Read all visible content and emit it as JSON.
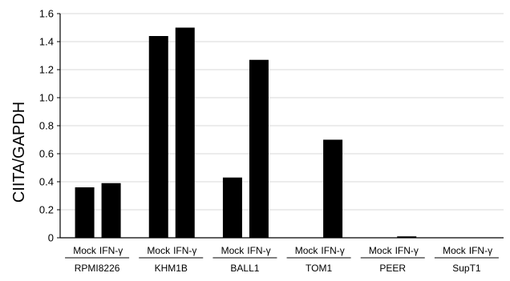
{
  "chart_data": {
    "type": "bar",
    "ylabel": "CIITA/GAPDH",
    "ylim": [
      0,
      1.6
    ],
    "yticks": [
      "0",
      "0.2",
      "0.4",
      "0.6",
      "0.8",
      "1.0",
      "1.2",
      "1.4",
      "1.6"
    ],
    "grid": true,
    "groups": [
      "RPMI8226",
      "KHM1B",
      "BALL1",
      "TOM1",
      "PEER",
      "SupT1"
    ],
    "conditions": [
      "Mock",
      "IFN-γ"
    ],
    "series": [
      {
        "name": "Mock",
        "values": [
          0.36,
          1.44,
          0.43,
          0.0,
          0.0,
          0.0
        ]
      },
      {
        "name": "IFN-γ",
        "values": [
          0.39,
          1.5,
          1.27,
          0.7,
          0.01,
          0.0
        ]
      }
    ],
    "bar_color": "#000000",
    "grid_color": "#d9d9d9"
  }
}
